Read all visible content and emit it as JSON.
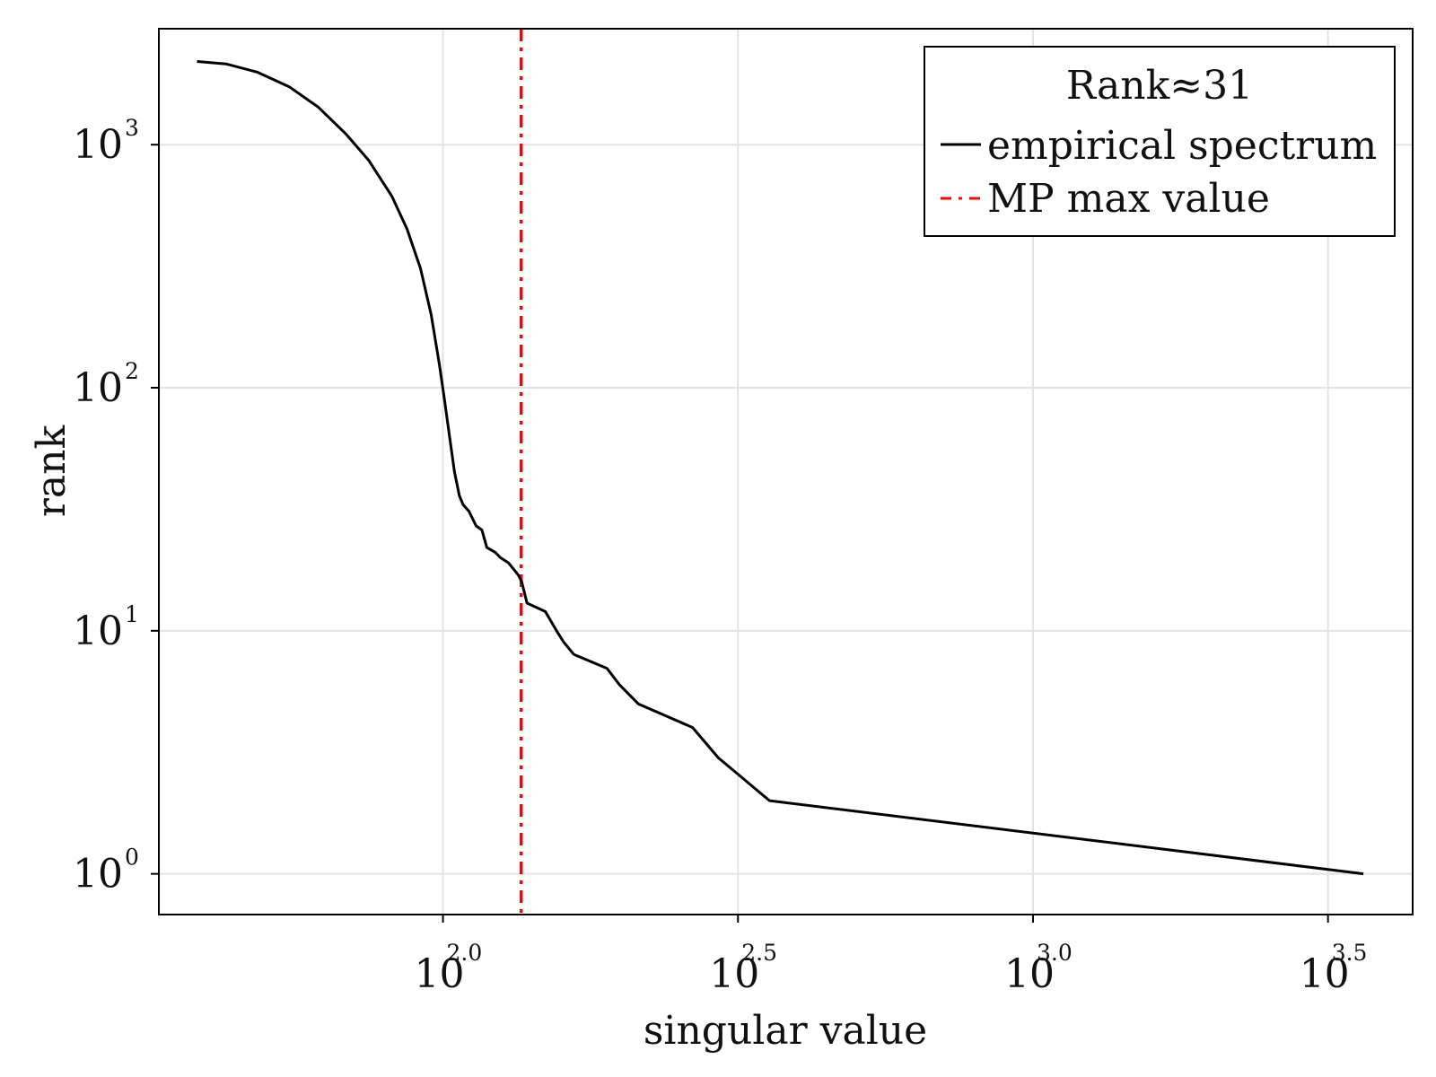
{
  "chart_data": {
    "type": "line",
    "xlabel": "singular value",
    "ylabel": "rank",
    "xscale": "log10",
    "yscale": "log10",
    "xlim": [
      33,
      4400
    ],
    "ylim": [
      0.68,
      3000
    ],
    "grid": true,
    "x_ticks": [
      {
        "value": 100,
        "base": "10",
        "exp": "2.0"
      },
      {
        "value": 316.23,
        "base": "10",
        "exp": "2.5"
      },
      {
        "value": 1000,
        "base": "10",
        "exp": "3.0"
      },
      {
        "value": 3162.28,
        "base": "10",
        "exp": "3.5"
      }
    ],
    "y_ticks": [
      {
        "value": 1,
        "base": "10",
        "exp": "0"
      },
      {
        "value": 10,
        "base": "10",
        "exp": "1"
      },
      {
        "value": 100,
        "base": "10",
        "exp": "2"
      },
      {
        "value": 1000,
        "base": "10",
        "exp": "3"
      }
    ],
    "legend": {
      "title": "Rank≈31",
      "position": "top-right",
      "entries": [
        {
          "label": "empirical spectrum",
          "color": "#000000",
          "style": "solid"
        },
        {
          "label": "MP max value",
          "color": "#ff0000",
          "style": "dashdot"
        }
      ]
    },
    "series": [
      {
        "name": "empirical spectrum",
        "color": "#000000",
        "style": "solid",
        "points": [
          [
            38.3,
            2200
          ],
          [
            42.9,
            2150
          ],
          [
            48.4,
            1990
          ],
          [
            54.9,
            1730
          ],
          [
            61.4,
            1430
          ],
          [
            68.4,
            1110
          ],
          [
            74.9,
            860
          ],
          [
            81.9,
            615
          ],
          [
            86.9,
            450
          ],
          [
            91.6,
            310
          ],
          [
            95.5,
            200
          ],
          [
            98.6,
            125
          ],
          [
            100.7,
            88
          ],
          [
            102.6,
            63
          ],
          [
            104.6,
            45
          ],
          [
            106.6,
            36
          ],
          [
            108.2,
            33
          ],
          [
            110.7,
            31
          ],
          [
            113.8,
            27
          ],
          [
            116.4,
            26
          ],
          [
            117.5,
            24
          ],
          [
            118.7,
            22
          ],
          [
            122.7,
            21
          ],
          [
            125.1,
            20
          ],
          [
            129.2,
            19
          ],
          [
            134.1,
            17
          ],
          [
            135.9,
            16
          ],
          [
            138.8,
            13
          ],
          [
            149.1,
            12
          ],
          [
            155.8,
            10
          ],
          [
            160.1,
            9
          ],
          [
            166.6,
            8
          ],
          [
            189.7,
            7
          ],
          [
            199.1,
            6
          ],
          [
            214.5,
            5
          ],
          [
            264.9,
            4
          ],
          [
            292.9,
            3
          ],
          [
            357.6,
            2
          ],
          [
            3630,
            1
          ]
        ]
      }
    ],
    "vlines": [
      {
        "name": "MP max value",
        "x": 135.7,
        "color": "#ff0000",
        "style": "dashdot"
      }
    ]
  }
}
